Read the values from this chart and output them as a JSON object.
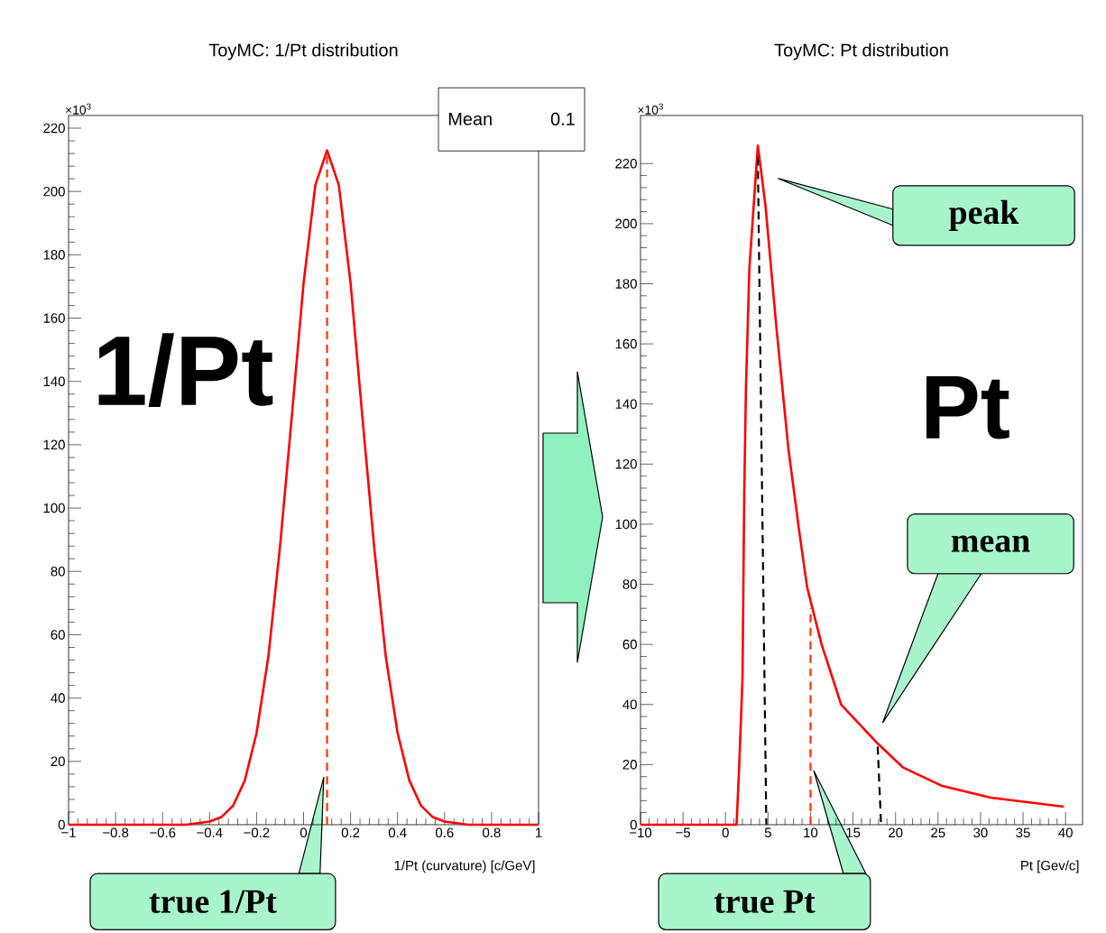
{
  "chart_data": [
    {
      "type": "line",
      "title": "ToyMC: 1/Pt distribution",
      "xlabel": "1/Pt (curvature) [c/GeV]",
      "xlim": [
        -1,
        1
      ],
      "xticks": [
        {
          "value": -1,
          "label": "−1"
        },
        {
          "value": -0.8,
          "label": "−0.8"
        },
        {
          "value": -0.6,
          "label": "−0.6"
        },
        {
          "value": -0.4,
          "label": "−0.4"
        },
        {
          "value": -0.2,
          "label": "−0.2"
        },
        0,
        0.2,
        0.4,
        0.6,
        0.8,
        1
      ],
      "ylim": [
        0,
        224
      ],
      "yticks": [
        0,
        20,
        40,
        60,
        80,
        100,
        120,
        140,
        160,
        180,
        200,
        220
      ],
      "series": [
        {
          "color": "#ff0000",
          "x": [
            -1,
            -0.5,
            -0.4,
            -0.35,
            -0.3,
            -0.25,
            -0.2,
            -0.15,
            -0.1,
            -0.05,
            0,
            0.05,
            0.1,
            0.15,
            0.2,
            0.25,
            0.3,
            0.35,
            0.4,
            0.45,
            0.5,
            0.55,
            0.6,
            0.7,
            1
          ],
          "values": [
            0,
            0,
            1,
            2.4,
            6,
            14,
            29,
            53,
            88,
            129,
            171,
            202,
            213,
            202,
            171,
            129,
            88,
            53,
            29,
            14,
            6,
            2.4,
            1,
            0,
            0
          ]
        },
        {
          "color": "#ff3300",
          "x": [
            0.1,
            0.1
          ],
          "values": [
            0,
            213
          ],
          "line_style": "dashed"
        }
      ],
      "annotations": [
        "×10$^{3}$",
        "Mean",
        "0.1",
        "1/Pt",
        "true 1/Pt"
      ]
    },
    {
      "type": "line",
      "title": "ToyMC: Pt distribution",
      "xlabel": "Pt [Gev/c]",
      "xlim": [
        -10,
        42
      ],
      "xticks": [
        {
          "value": -10,
          "label": "−10"
        },
        {
          "value": -5,
          "label": "−5"
        },
        0,
        5,
        10,
        15,
        20,
        25,
        30,
        35,
        40
      ],
      "ylim": [
        0,
        236
      ],
      "yticks": [
        0,
        20,
        40,
        60,
        80,
        100,
        120,
        140,
        160,
        180,
        200,
        220
      ],
      "series": [
        {
          "color": "#ff0000",
          "x": [
            -10,
            1.3,
            1.6,
            2.0,
            2.2,
            2.4,
            2.8,
            3.8,
            4.7,
            6.0,
            7.4,
            8.7,
            9.6,
            11.3,
            13.6,
            17.9,
            20.9,
            25.4,
            31.2,
            39.8
          ],
          "values": [
            0,
            0,
            19,
            49,
            110,
            145,
            185,
            226,
            206,
            165,
            125,
            97,
            79,
            60,
            40,
            27,
            19,
            13,
            9,
            6
          ]
        },
        {
          "color": "#000000",
          "x": [
            3.8,
            4.8
          ],
          "values": [
            222,
            0
          ],
          "line_style": "dashed"
        },
        {
          "color": "#ff3300",
          "x": [
            10,
            10
          ],
          "values": [
            0,
            72
          ],
          "line_style": "dashed"
        },
        {
          "color": "#000000",
          "x": [
            17.9,
            18.3
          ],
          "values": [
            26,
            0
          ],
          "line_style": "dashed"
        }
      ],
      "annotations": [
        "×10$^{3}$",
        "Pt",
        "peak",
        "mean",
        "true Pt"
      ]
    }
  ]
}
